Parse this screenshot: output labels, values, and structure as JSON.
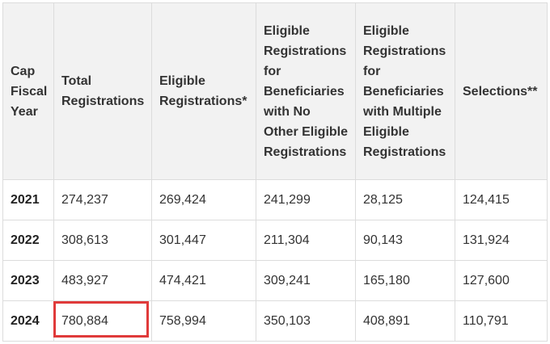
{
  "table": {
    "headers": [
      "Cap Fiscal Year",
      "Total Registrations",
      "Eligible Registrations*",
      "Eligible Registrations for Beneficiaries with No Other Eligible Registrations",
      "Eligible Registrations for Beneficiaries with Multiple Eligible Registrations",
      "Selections**"
    ],
    "rows": [
      [
        "2021",
        "274,237",
        "269,424",
        "241,299",
        "28,125",
        "124,415"
      ],
      [
        "2022",
        "308,613",
        "301,447",
        "211,304",
        "90,143",
        "131,924"
      ],
      [
        "2023",
        "483,927",
        "474,421",
        "309,241",
        "165,180",
        "127,600"
      ],
      [
        "2024",
        "780,884",
        "758,994",
        "350,103",
        "408,891",
        "110,791"
      ]
    ]
  },
  "highlight": {
    "row": "2024",
    "column": "Total Registrations",
    "value": "780,884",
    "color": "#e03a3a"
  },
  "colors": {
    "header_background": "#f2f2f2",
    "border": "#dcdcdc",
    "text": "#333333"
  }
}
